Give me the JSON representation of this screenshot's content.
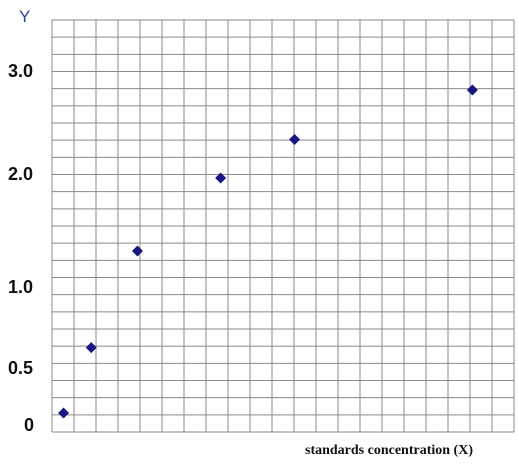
{
  "chart_data": {
    "type": "scatter",
    "ylabel": "Y",
    "xlabel": "standards concentration (X)",
    "y_tick_labels": [
      "0",
      "0.5",
      "1.0",
      "2.0",
      "3.0"
    ],
    "x": [
      0.5,
      1.7,
      3.7,
      7.3,
      10.5,
      18.2
    ],
    "y": [
      0.0,
      0.7,
      1.5,
      2.2,
      2.55,
      3.0
    ],
    "xlim": [
      0,
      20
    ],
    "grid": true,
    "marker": "diamond",
    "marker_color": "#1a1580",
    "grid_color": "#8a8a8a",
    "axis_title_color": "#2b3ea8"
  }
}
